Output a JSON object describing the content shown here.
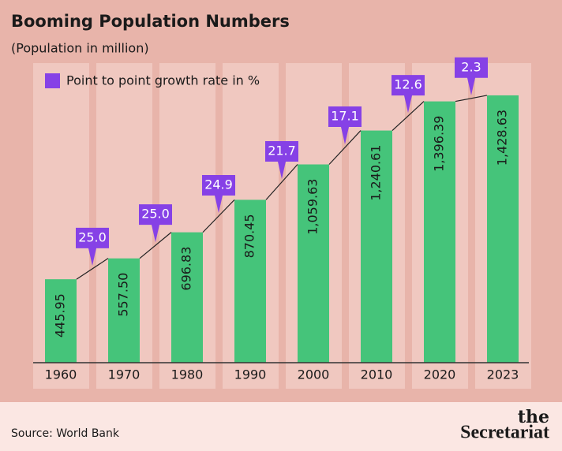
{
  "chart_data": {
    "type": "bar",
    "title": "Booming Population Numbers",
    "subtitle": "(Population in million)",
    "categories": [
      "1960",
      "1970",
      "1980",
      "1990",
      "2000",
      "2010",
      "2020",
      "2023"
    ],
    "values": [
      445.95,
      557.5,
      696.83,
      870.45,
      1059.63,
      1240.61,
      1396.39,
      1428.63
    ],
    "value_labels": [
      "445.95",
      "557.50",
      "696.83",
      "870.45",
      "1,059.63",
      "1,240.61",
      "1,396.39",
      "1,428.63"
    ],
    "color": "#45c47a",
    "ylim": [
      0,
      1500
    ],
    "growth": {
      "name": "Point to point growth rate in %",
      "color": "#8641e6",
      "values": [
        25.0,
        25.0,
        24.9,
        21.7,
        17.1,
        12.6,
        2.3
      ],
      "value_labels": [
        "25.0",
        "25.0",
        "24.9",
        "21.7",
        "17.1",
        "12.6",
        "2.3"
      ]
    },
    "source": "Source: World Bank",
    "brand_top": "the",
    "brand": "Secretariat"
  }
}
